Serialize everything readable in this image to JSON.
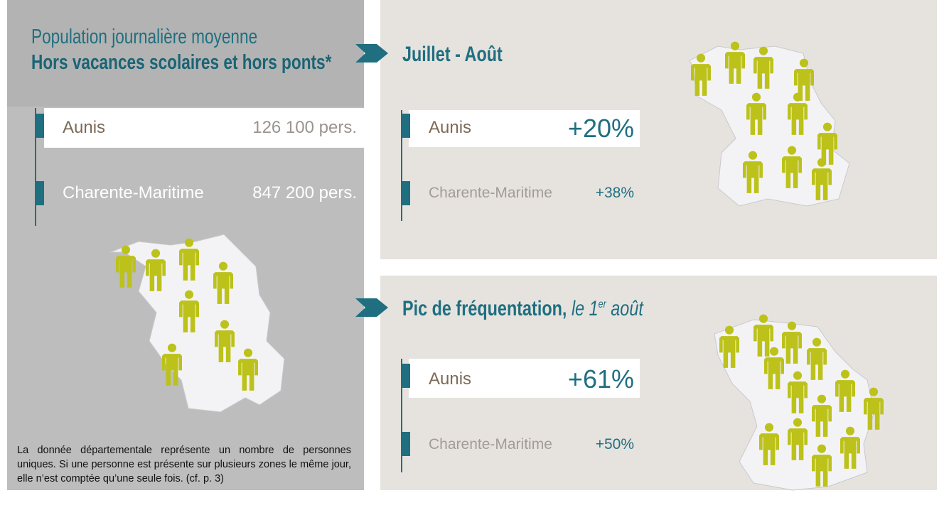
{
  "left": {
    "title_line1": "Population journalière moyenne",
    "title_line2": "Hors vacances scolaires et hors ponts*",
    "rows": [
      {
        "label": "Aunis",
        "value": "126 100 pers."
      },
      {
        "label": "Charente-Maritime",
        "value": "847 200 pers."
      }
    ],
    "footnote": "La donnée départementale représente un nombre de personnes uniques. Si une personne est présente sur plusieurs zones le même jour, elle n’est comptée qu’une seule fois. (cf. p. 3)"
  },
  "summer": {
    "title": "Juillet - Août",
    "rows": [
      {
        "label": "Aunis",
        "value": "+20%"
      },
      {
        "label": "Charente-Maritime",
        "value": "+38%"
      }
    ]
  },
  "peak": {
    "title": "Pic de fréquentation,",
    "title_date": "le 1",
    "title_sup": "er",
    "title_month": "août",
    "rows": [
      {
        "label": "Aunis",
        "value": "+61%"
      },
      {
        "label": "Charente-Maritime",
        "value": "+50%"
      }
    ]
  }
}
